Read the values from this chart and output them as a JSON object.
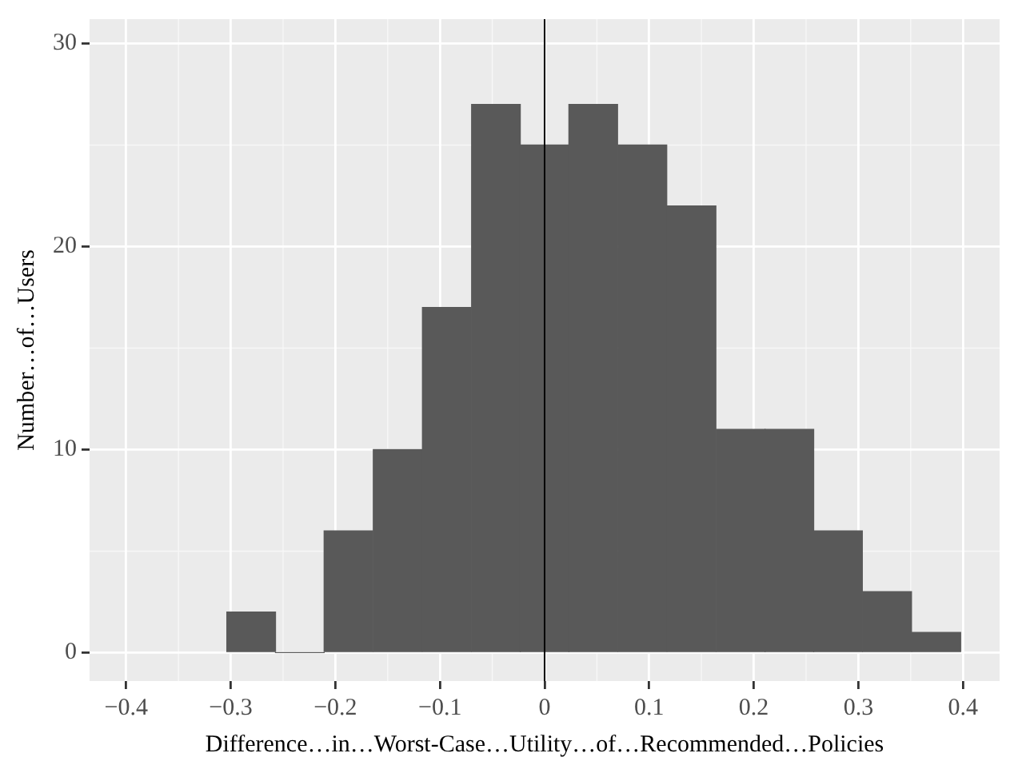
{
  "chart_data": {
    "type": "histogram",
    "xlabel": "Difference…in…Worst-Case…Utility…of…Recommended…Policies",
    "ylabel": "Number…of…Users",
    "bins": [
      -0.304,
      -0.257,
      -0.211,
      -0.164,
      -0.117,
      -0.07,
      -0.023,
      0.023,
      0.07,
      0.117,
      0.164,
      0.211,
      0.257,
      0.304,
      0.351,
      0.398
    ],
    "values": [
      2,
      0,
      6,
      10,
      17,
      27,
      25,
      27,
      25,
      22,
      11,
      11,
      6,
      3,
      1
    ],
    "color": "#595959",
    "xlim": [
      -0.435,
      0.435
    ],
    "xticks": [
      -0.4,
      -0.3,
      -0.2,
      -0.1,
      0,
      0.1,
      0.2,
      0.3,
      0.4
    ],
    "ylim": [
      -1.4,
      31.2
    ],
    "yticks": [
      0,
      10,
      20,
      30
    ],
    "ref_lines": [
      {
        "axis": "x",
        "value": 0,
        "color": "#000000"
      }
    ],
    "grid": true,
    "legend": false
  }
}
